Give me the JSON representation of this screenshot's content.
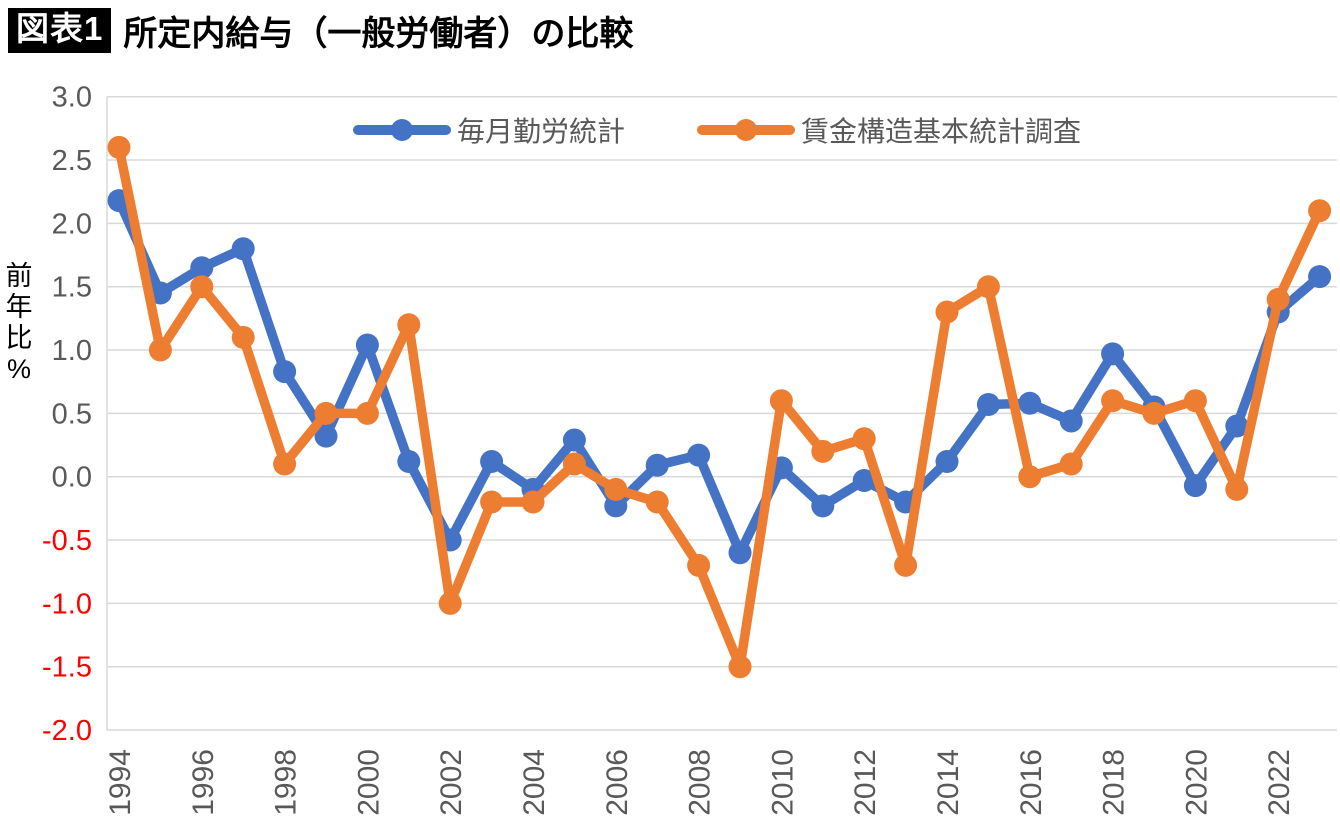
{
  "header": {
    "badge": "図表1",
    "title": "所定内給与（一般労働者）の比較"
  },
  "chart_data": {
    "type": "line",
    "title": "所定内給与（一般労働者）の比較",
    "ylabel": "前年比%",
    "ylabel_chars": [
      "前",
      "年",
      "比",
      "%"
    ],
    "x": [
      1994,
      1995,
      1996,
      1997,
      1998,
      1999,
      2000,
      2001,
      2002,
      2003,
      2004,
      2005,
      2006,
      2007,
      2008,
      2009,
      2010,
      2011,
      2012,
      2013,
      2014,
      2015,
      2016,
      2017,
      2018,
      2019,
      2020,
      2021,
      2022,
      2023
    ],
    "series": [
      {
        "name": "毎月勤労統計",
        "color": "#4472C4",
        "values": [
          2.18,
          1.45,
          1.65,
          1.8,
          0.83,
          0.32,
          1.04,
          0.12,
          -0.5,
          0.12,
          -0.1,
          0.29,
          -0.23,
          0.09,
          0.17,
          -0.6,
          0.07,
          -0.23,
          -0.03,
          -0.2,
          0.12,
          0.57,
          0.58,
          0.44,
          0.97,
          0.55,
          -0.07,
          0.4,
          1.3,
          1.58
        ]
      },
      {
        "name": "賃金構造基本統計調査",
        "color": "#ED7D31",
        "values": [
          2.6,
          1.0,
          1.5,
          1.1,
          0.1,
          0.5,
          0.5,
          1.2,
          -1.0,
          -0.2,
          -0.2,
          0.1,
          -0.1,
          -0.2,
          -0.7,
          -1.5,
          0.6,
          0.2,
          0.3,
          -0.7,
          1.3,
          1.5,
          0.0,
          0.1,
          0.6,
          0.5,
          0.6,
          -0.1,
          1.4,
          2.1
        ]
      }
    ],
    "ylim": [
      -2.0,
      3.0
    ],
    "yticks": [
      3.0,
      2.5,
      2.0,
      1.5,
      1.0,
      0.5,
      0.0,
      -0.5,
      -1.0,
      -1.5,
      -2.0
    ],
    "xticks": [
      1994,
      1996,
      1998,
      2000,
      2002,
      2004,
      2006,
      2008,
      2010,
      2012,
      2014,
      2016,
      2018,
      2020,
      2022
    ],
    "grid": true,
    "legend_position": "top",
    "styles": {
      "grid_color": "#d9d9d9",
      "tick_label_color": "#595959",
      "negative_tick_color": "#ff0000",
      "axis_title_color": "#000000",
      "background": "#ffffff"
    }
  }
}
